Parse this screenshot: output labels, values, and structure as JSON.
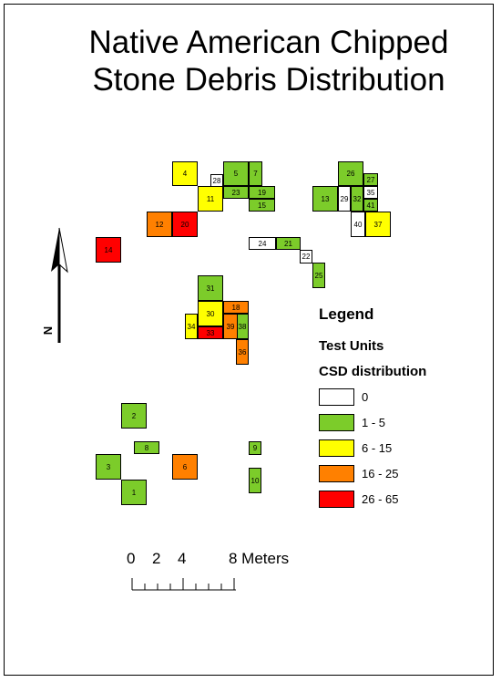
{
  "title": {
    "line1": "Native American Chipped",
    "line2": "Stone Debris Distribution"
  },
  "legend": {
    "title": "Legend",
    "subtitle": "Test Units",
    "field": "CSD distribution",
    "classes": [
      {
        "label": "0",
        "color": "#ffffff"
      },
      {
        "label": "1 - 5",
        "color": "#7ccc2a"
      },
      {
        "label": "6 - 15",
        "color": "#ffff00"
      },
      {
        "label": "16 - 25",
        "color": "#ff8000"
      },
      {
        "label": "26 - 65",
        "color": "#ff0000"
      }
    ]
  },
  "north_arrow": {
    "label": "N"
  },
  "scale_bar": {
    "labels": [
      "0",
      "2",
      "4",
      "8 Meters"
    ]
  },
  "test_units": [
    {
      "id": "1",
      "class": 1
    },
    {
      "id": "2",
      "class": 1
    },
    {
      "id": "3",
      "class": 1
    },
    {
      "id": "4",
      "class": 2
    },
    {
      "id": "5",
      "class": 1
    },
    {
      "id": "6",
      "class": 3
    },
    {
      "id": "7",
      "class": 1
    },
    {
      "id": "8",
      "class": 1
    },
    {
      "id": "9",
      "class": 1
    },
    {
      "id": "10",
      "class": 1
    },
    {
      "id": "11",
      "class": 2
    },
    {
      "id": "12",
      "class": 3
    },
    {
      "id": "13",
      "class": 1
    },
    {
      "id": "14",
      "class": 4
    },
    {
      "id": "15",
      "class": 1
    },
    {
      "id": "18",
      "class": 3
    },
    {
      "id": "19",
      "class": 1
    },
    {
      "id": "20",
      "class": 4
    },
    {
      "id": "21",
      "class": 1
    },
    {
      "id": "22",
      "class": 0
    },
    {
      "id": "23",
      "class": 1
    },
    {
      "id": "24",
      "class": 0
    },
    {
      "id": "25",
      "class": 1
    },
    {
      "id": "26",
      "class": 1
    },
    {
      "id": "27",
      "class": 1
    },
    {
      "id": "28",
      "class": 0
    },
    {
      "id": "29",
      "class": 0
    },
    {
      "id": "30",
      "class": 2
    },
    {
      "id": "31",
      "class": 1
    },
    {
      "id": "32",
      "class": 1
    },
    {
      "id": "33",
      "class": 4
    },
    {
      "id": "34",
      "class": 2
    },
    {
      "id": "35",
      "class": 0
    },
    {
      "id": "36",
      "class": 3
    },
    {
      "id": "37",
      "class": 2
    },
    {
      "id": "38",
      "class": 1
    },
    {
      "id": "39",
      "class": 3
    },
    {
      "id": "40",
      "class": 0
    },
    {
      "id": "41",
      "class": 1
    }
  ]
}
